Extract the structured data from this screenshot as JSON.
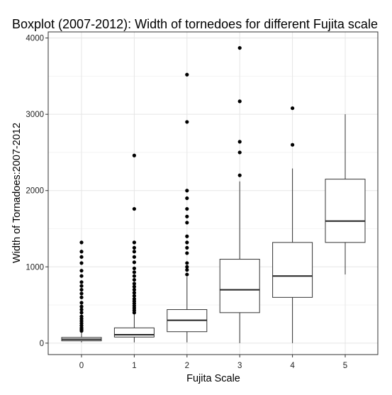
{
  "chart_data": {
    "type": "boxplot",
    "title": "Boxplot (2007-2012): Width of tornedoes for different Fujita scale",
    "xlabel": "Fujita Scale",
    "ylabel": "Width of Tornadoes:2007-2012",
    "categories": [
      "0",
      "1",
      "2",
      "3",
      "4",
      "5"
    ],
    "yticks": [
      0,
      1000,
      2000,
      3000,
      4000
    ],
    "yticks_labels": [
      "0",
      "1000",
      "2000",
      "3000",
      "4000"
    ],
    "ylim": [
      -150,
      4080
    ],
    "grid": true,
    "theme_colors": {
      "grid": "#e5e5e5",
      "panel_border": "#333333",
      "box_stroke": "#333333",
      "point": "#000000"
    },
    "boxes": [
      {
        "category": "0",
        "whisker_low": 10,
        "q1": 30,
        "median": 50,
        "q3": 75,
        "whisker_high": 135,
        "outliers": [
          160,
          180,
          200,
          230,
          260,
          290,
          320,
          350,
          400,
          440,
          480,
          530,
          600,
          650,
          700,
          750,
          800,
          880,
          950,
          1050,
          1130,
          1200,
          1320
        ]
      },
      {
        "category": "1",
        "whisker_low": 10,
        "q1": 80,
        "median": 110,
        "q3": 200,
        "whisker_high": 375,
        "outliers": [
          400,
          430,
          460,
          490,
          520,
          550,
          580,
          620,
          660,
          700,
          740,
          780,
          830,
          880,
          930,
          980,
          1060,
          1130,
          1200,
          1250,
          1320,
          1760,
          2460
        ]
      },
      {
        "category": "2",
        "whisker_low": 10,
        "q1": 150,
        "median": 300,
        "q3": 440,
        "whisker_high": 870,
        "outliers": [
          900,
          960,
          1000,
          1050,
          1180,
          1250,
          1320,
          1400,
          1580,
          1660,
          1760,
          1900,
          2000,
          2900,
          3520
        ]
      },
      {
        "category": "3",
        "whisker_low": 0,
        "q1": 400,
        "median": 700,
        "q3": 1100,
        "whisker_high": 2120,
        "outliers": [
          2200,
          2500,
          2640,
          3170,
          3870
        ]
      },
      {
        "category": "4",
        "whisker_low": 0,
        "q1": 600,
        "median": 880,
        "q3": 1320,
        "whisker_high": 2290,
        "outliers": [
          2600,
          3080
        ]
      },
      {
        "category": "5",
        "whisker_low": 900,
        "q1": 1320,
        "median": 1600,
        "q3": 2150,
        "whisker_high": 3000,
        "outliers": []
      }
    ]
  }
}
